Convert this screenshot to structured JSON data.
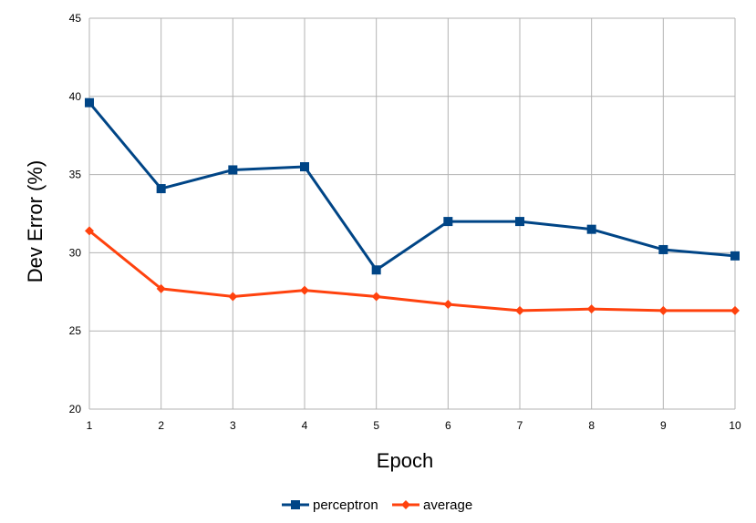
{
  "chart_data": {
    "type": "line",
    "xlabel": "Epoch",
    "ylabel": "Dev Error (%)",
    "categories": [
      "1",
      "2",
      "3",
      "4",
      "5",
      "6",
      "7",
      "8",
      "9",
      "10"
    ],
    "ylim": [
      20,
      45
    ],
    "yticks": [
      "20",
      "25",
      "30",
      "35",
      "40",
      "45"
    ],
    "grid": true,
    "legend_position": "bottom",
    "series": [
      {
        "name": "perceptron",
        "color": "#004586",
        "marker": "square",
        "values": [
          39.6,
          34.1,
          35.3,
          35.5,
          28.9,
          32.0,
          32.0,
          31.5,
          30.2,
          29.8
        ]
      },
      {
        "name": "average",
        "color": "#ff420e",
        "marker": "diamond",
        "values": [
          31.4,
          27.7,
          27.2,
          27.6,
          27.2,
          26.7,
          26.3,
          26.4,
          26.3,
          26.3
        ]
      }
    ]
  }
}
